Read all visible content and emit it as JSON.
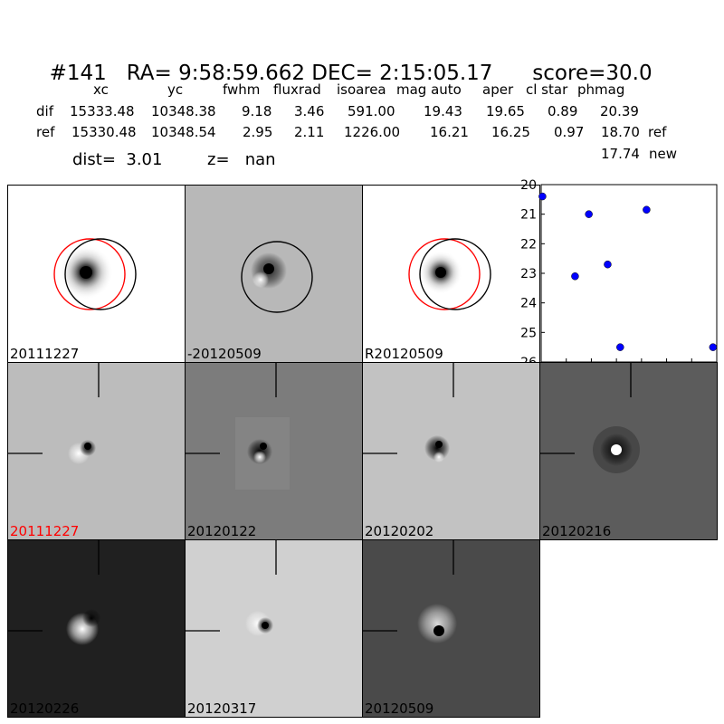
{
  "header": {
    "id": "#141",
    "coords": "RA= 9:58:59.662 DEC= 2:15:05.17",
    "score": "score=30.0"
  },
  "table": {
    "columns": [
      "xc",
      "yc",
      "fwhm",
      "fluxrad",
      "isoarea",
      "mag auto",
      "aper",
      "cl star",
      "phmag"
    ],
    "rows": [
      {
        "label": "dif",
        "xc": "15333.48",
        "yc": "10348.38",
        "fwhm": "9.18",
        "fluxrad": "3.46",
        "isoarea": "591.00",
        "mag_auto": "19.43",
        "aper": "19.65",
        "cl_star": "0.89",
        "phmag": "20.39",
        "note": ""
      },
      {
        "label": "ref",
        "xc": "15330.48",
        "yc": "10348.54",
        "fwhm": "2.95",
        "fluxrad": "2.11",
        "isoarea": "1226.00",
        "mag_auto": "16.21",
        "aper": "16.25",
        "cl_star": "0.97",
        "phmag": "18.70",
        "note": "ref"
      }
    ],
    "extra_phmag": "17.74",
    "extra_note": "new"
  },
  "summary": {
    "dist": "dist=  3.01",
    "z": "z=   nan"
  },
  "panels_top": [
    {
      "label": "20111227",
      "bg": "#ffffff",
      "red_circle": true,
      "black_circle": true
    },
    {
      "label": "-20120509",
      "bg": "#b8b8b8",
      "red_circle": false,
      "black_circle": true
    },
    {
      "label": "R20120509",
      "bg": "#ffffff",
      "red_circle": true,
      "black_circle": true
    }
  ],
  "panels_mid": [
    {
      "label": "20111227",
      "bg": "#bcbcbc",
      "label_color": "red"
    },
    {
      "label": "20120122",
      "bg": "#7c7c7c",
      "label_color": "black"
    },
    {
      "label": "20120202",
      "bg": "#c2c2c2",
      "label_color": "black"
    },
    {
      "label": "20120216",
      "bg": "#5c5c5c",
      "label_color": "black"
    }
  ],
  "panels_bot": [
    {
      "label": "20120226",
      "bg": "#202020",
      "label_color": "black"
    },
    {
      "label": "20120317",
      "bg": "#d0d0d0",
      "label_color": "black"
    },
    {
      "label": "20120509",
      "bg": "#4a4a4a",
      "label_color": "black"
    }
  ],
  "chart_data": {
    "type": "scatter",
    "title": "",
    "xlabel": "",
    "ylabel": "",
    "xlim": [
      0,
      140
    ],
    "ylim": [
      26,
      20
    ],
    "y_inverted": true,
    "xticks": [
      "0",
      "20",
      "40",
      "60",
      "80",
      "100",
      "120"
    ],
    "yticks": [
      "20",
      "21",
      "22",
      "23",
      "24",
      "25",
      "26"
    ],
    "series": [
      {
        "color": "#0000ff",
        "points": [
          {
            "x": 1,
            "y": 20.4
          },
          {
            "x": 27,
            "y": 23.1
          },
          {
            "x": 38,
            "y": 21.0
          },
          {
            "x": 53,
            "y": 22.7
          },
          {
            "x": 63,
            "y": 25.5
          },
          {
            "x": 84,
            "y": 20.85
          },
          {
            "x": 137,
            "y": 25.5
          }
        ]
      }
    ]
  }
}
